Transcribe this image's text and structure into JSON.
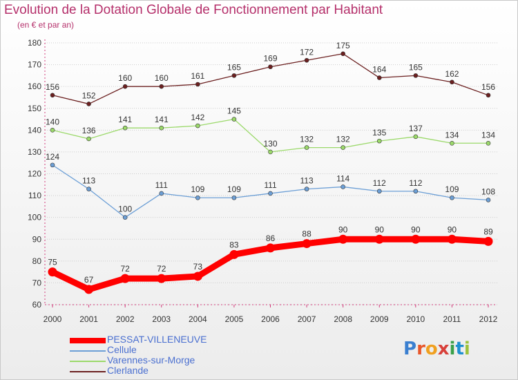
{
  "header": {
    "title": "Evolution de la Dotation Globale de Fonctionnement par Habitant",
    "subtitle": "(en € et par an)"
  },
  "logo": {
    "text": "Proxiti",
    "colors": [
      "#3a7fd0",
      "#e8562a",
      "#f0a020",
      "#d8403a",
      "#3aa04a",
      "#1e90d0",
      "#9dc23b"
    ]
  },
  "colors": {
    "title": "#b5306b",
    "axis_text": "#333333",
    "grid": "#cccccc"
  },
  "chart_data": {
    "type": "line",
    "title": "Evolution de la Dotation Globale de Fonctionnement par Habitant",
    "subtitle": "(en € et par an)",
    "xlabel": "",
    "ylabel": "",
    "categories": [
      "2000",
      "2001",
      "2002",
      "2003",
      "2004",
      "2005",
      "2006",
      "2007",
      "2008",
      "2009",
      "2010",
      "2011",
      "2012"
    ],
    "ylim": [
      60,
      180
    ],
    "yticks": [
      60,
      70,
      80,
      90,
      100,
      110,
      120,
      130,
      140,
      150,
      160,
      170,
      180
    ],
    "grid": "horizontal",
    "legend_position": "bottom-left",
    "series": [
      {
        "name": "PESSAT-VILLENEUVE",
        "color": "#ff0000",
        "emphasis": true,
        "values": [
          75,
          67,
          72,
          72,
          73,
          83,
          86,
          88,
          90,
          90,
          90,
          90,
          89
        ]
      },
      {
        "name": "Cellule",
        "color": "#6c9fd6",
        "emphasis": false,
        "values": [
          124,
          113,
          100,
          111,
          109,
          109,
          111,
          113,
          114,
          112,
          112,
          109,
          108
        ]
      },
      {
        "name": "Varennes-sur-Morge",
        "color": "#9bd96a",
        "emphasis": false,
        "values": [
          140,
          136,
          141,
          141,
          142,
          145,
          130,
          132,
          132,
          135,
          137,
          134,
          134
        ]
      },
      {
        "name": "Clerlande",
        "color": "#6b1f1f",
        "emphasis": false,
        "values": [
          156,
          152,
          160,
          160,
          161,
          165,
          169,
          172,
          175,
          164,
          165,
          162,
          156
        ]
      }
    ]
  }
}
